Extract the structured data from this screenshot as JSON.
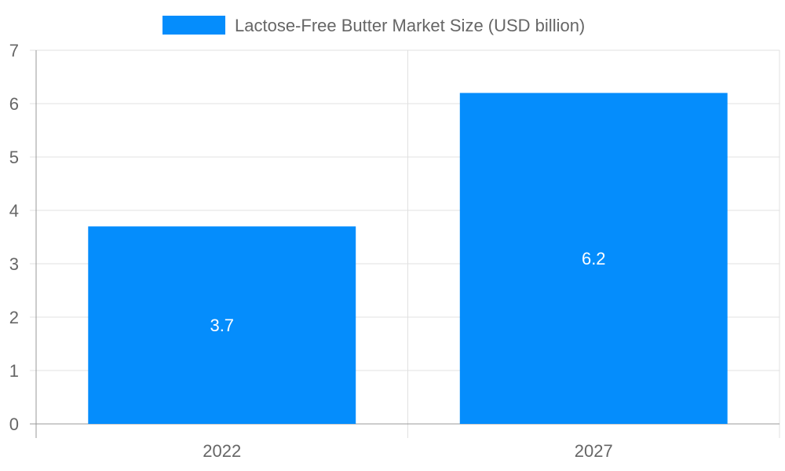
{
  "chart_data": {
    "type": "bar",
    "categories": [
      "2022",
      "2027"
    ],
    "series": [
      {
        "name": "Lactose-Free Butter Market Size (USD billion)",
        "values": [
          3.7,
          6.2
        ],
        "color": "#058DFC"
      }
    ],
    "data_labels": [
      "3.7",
      "6.2"
    ],
    "ylim": [
      0,
      7
    ],
    "yticks": [
      "0",
      "1",
      "2",
      "3",
      "4",
      "5",
      "6",
      "7"
    ],
    "grid": true,
    "legend_position": "top-center"
  },
  "colors": {
    "bar": "#058DFC",
    "grid": "#e0e0e0",
    "axis": "#999999",
    "text": "#666666",
    "data_label": "#ffffff"
  }
}
